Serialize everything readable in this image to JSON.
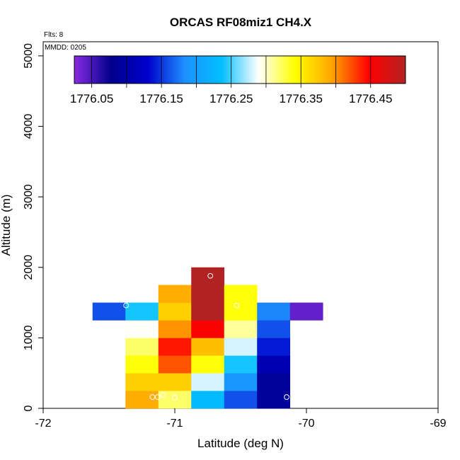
{
  "chart_data": {
    "type": "heatmap",
    "title": "ORCAS RF08miz1 CH4.X",
    "xlabel": "Latitude (deg N)",
    "ylabel": "Altitude (m)",
    "xlim": [
      -72,
      -69
    ],
    "ylim": [
      0,
      5200
    ],
    "x_ticks": [
      -72,
      -71,
      -70,
      -69
    ],
    "y_ticks": [
      0,
      1000,
      2000,
      3000,
      4000,
      5000
    ],
    "annotations": {
      "flights": "Flts: 8",
      "date": "MMDD: 0205"
    },
    "cell_size": {
      "lat_deg": 0.25,
      "alt_m": 250
    },
    "cells": [
      {
        "lat": -71.25,
        "alt": 0,
        "value": 1776.39
      },
      {
        "lat": -71.0,
        "alt": 0,
        "value": 1776.32
      },
      {
        "lat": -70.75,
        "alt": 0,
        "value": 1776.23
      },
      {
        "lat": -70.5,
        "alt": 0,
        "value": 1776.16
      },
      {
        "lat": -70.25,
        "alt": 0,
        "value": 1776.09
      },
      {
        "lat": -71.25,
        "alt": 250,
        "value": 1776.37
      },
      {
        "lat": -71.0,
        "alt": 250,
        "value": 1776.37
      },
      {
        "lat": -70.75,
        "alt": 250,
        "value": 1776.28
      },
      {
        "lat": -70.5,
        "alt": 250,
        "value": 1776.19
      },
      {
        "lat": -70.25,
        "alt": 250,
        "value": 1776.09
      },
      {
        "lat": -71.25,
        "alt": 500,
        "value": 1776.34
      },
      {
        "lat": -71.0,
        "alt": 500,
        "value": 1776.42
      },
      {
        "lat": -70.75,
        "alt": 500,
        "value": 1776.34
      },
      {
        "lat": -70.5,
        "alt": 500,
        "value": 1776.24
      },
      {
        "lat": -70.25,
        "alt": 500,
        "value": 1776.11
      },
      {
        "lat": -71.25,
        "alt": 750,
        "value": 1776.32
      },
      {
        "lat": -71.0,
        "alt": 750,
        "value": 1776.44
      },
      {
        "lat": -70.75,
        "alt": 750,
        "value": 1776.38
      },
      {
        "lat": -70.5,
        "alt": 750,
        "value": 1776.28
      },
      {
        "lat": -70.25,
        "alt": 750,
        "value": 1776.14
      },
      {
        "lat": -71.25,
        "alt": 1000,
        "value": 1776.29
      },
      {
        "lat": -71.0,
        "alt": 1000,
        "value": 1776.4
      },
      {
        "lat": -70.75,
        "alt": 1000,
        "value": 1776.45
      },
      {
        "lat": -70.5,
        "alt": 1000,
        "value": 1776.31
      },
      {
        "lat": -70.25,
        "alt": 1000,
        "value": 1776.16
      },
      {
        "lat": -71.5,
        "alt": 1250,
        "value": 1776.16
      },
      {
        "lat": -71.25,
        "alt": 1250,
        "value": 1776.24
      },
      {
        "lat": -71.0,
        "alt": 1250,
        "value": 1776.37
      },
      {
        "lat": -70.75,
        "alt": 1250,
        "value": 1776.5
      },
      {
        "lat": -70.5,
        "alt": 1250,
        "value": 1776.34
      },
      {
        "lat": -70.25,
        "alt": 1250,
        "value": 1776.18
      },
      {
        "lat": -70.0,
        "alt": 1250,
        "value": 1776.04
      },
      {
        "lat": -71.0,
        "alt": 1500,
        "value": 1776.39
      },
      {
        "lat": -70.75,
        "alt": 1500,
        "value": 1776.5
      },
      {
        "lat": -70.5,
        "alt": 1500,
        "value": 1776.34
      },
      {
        "lat": -70.75,
        "alt": 1750,
        "value": 1776.5
      }
    ],
    "sample_points": [
      {
        "lat": -71.17,
        "alt": 160
      },
      {
        "lat": -71.13,
        "alt": 160
      },
      {
        "lat": -71.09,
        "alt": 190
      },
      {
        "lat": -71.0,
        "alt": 150
      },
      {
        "lat": -70.15,
        "alt": 160
      },
      {
        "lat": -71.37,
        "alt": 1460
      },
      {
        "lat": -70.53,
        "alt": 1460
      },
      {
        "lat": -69.78,
        "alt": 1480
      },
      {
        "lat": -70.73,
        "alt": 1880
      }
    ],
    "colorbar": {
      "tick_values": [
        1776.05,
        1776.15,
        1776.25,
        1776.35,
        1776.45
      ],
      "tick_labels": [
        "1776.05",
        "1776.15",
        "1776.25",
        "1776.35",
        "1776.45"
      ],
      "min": 1776.025,
      "max": 1776.5,
      "colors": [
        "#8a2be2",
        "#00008b",
        "#0000cd",
        "#1e90ff",
        "#00bfff",
        "#ffffff",
        "#ffff00",
        "#ffa500",
        "#ff0000",
        "#b22222"
      ]
    }
  }
}
